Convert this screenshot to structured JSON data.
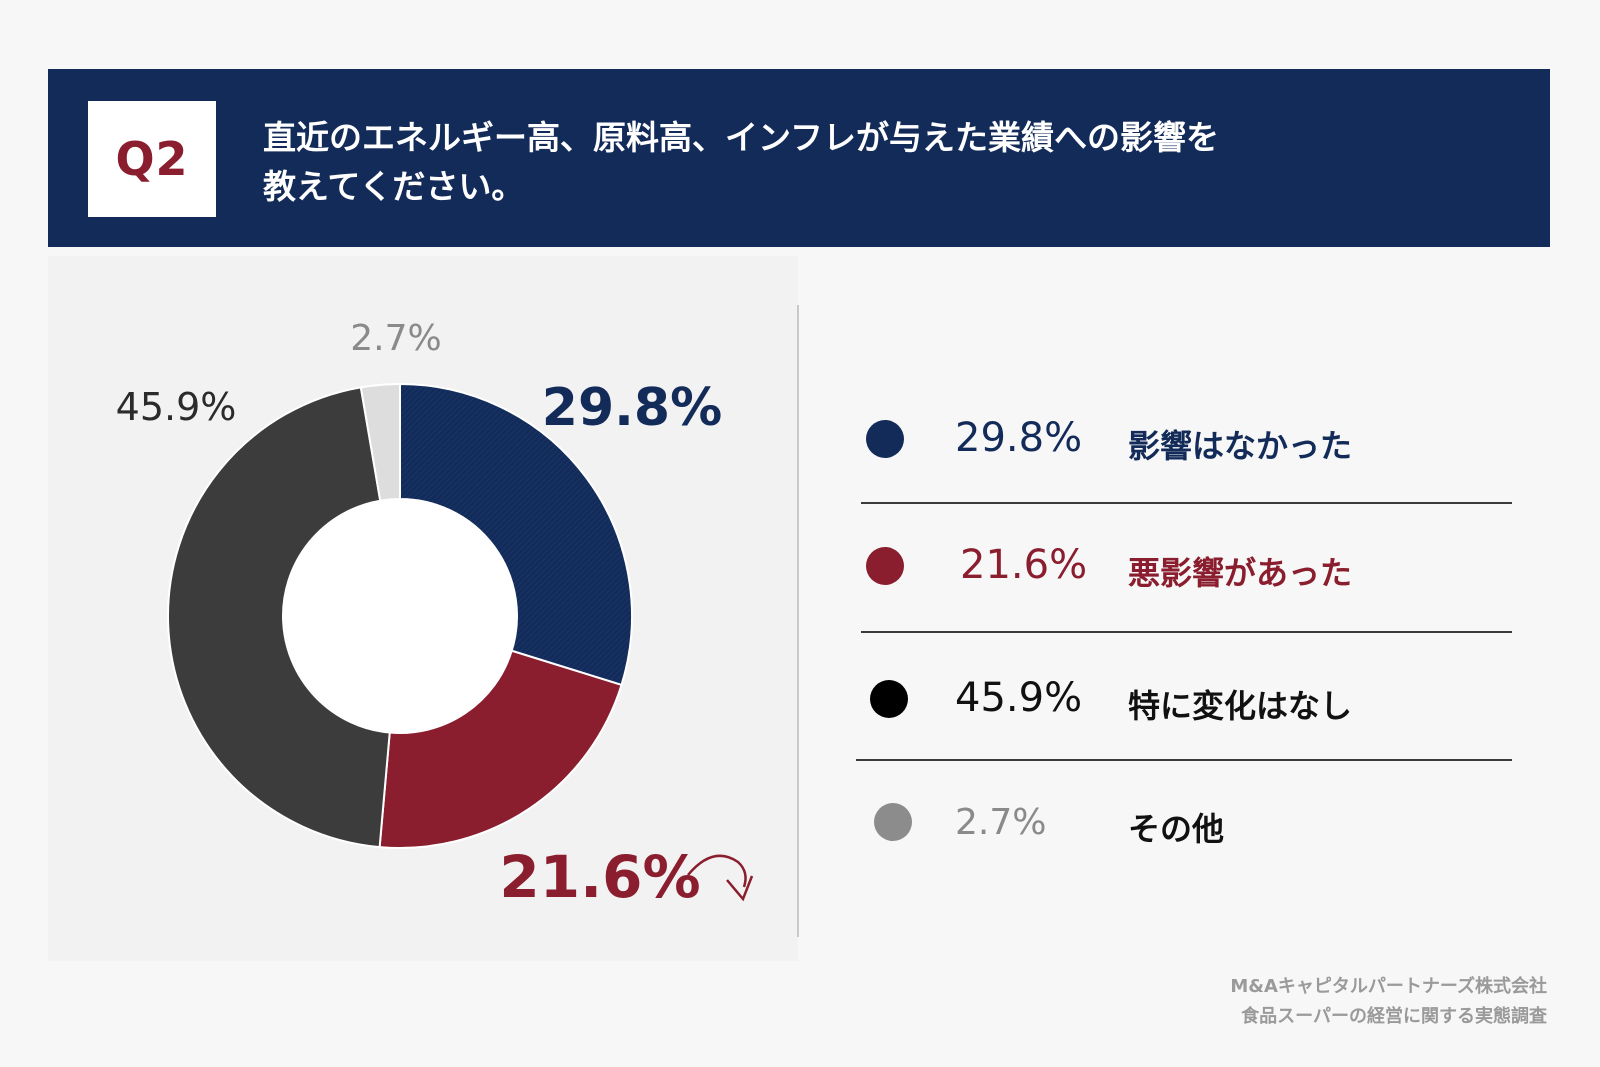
{
  "header": {
    "q_label": "Q2",
    "question_line1": "直近のエネルギー高、原料高、インフレが与えた業績への影響を",
    "question_line2": "教えてください。"
  },
  "chart_data": {
    "type": "pie",
    "donut": true,
    "categories": [
      "影響はなかった",
      "悪影響があった",
      "特に変化はなし",
      "その他"
    ],
    "values": [
      29.8,
      21.6,
      45.9,
      2.7
    ],
    "value_labels": [
      "29.8%",
      "21.6%",
      "45.9%",
      "2.7%"
    ],
    "colors": [
      "#132b59",
      "#8a1d2e",
      "#3c3c3c",
      "#dddddd"
    ],
    "label_colors": [
      "#132b59",
      "#8a1d2e",
      "#2b2b2b",
      "#8a8a8a"
    ],
    "legend_placement": "right"
  },
  "legend": [
    {
      "pct": "29.8%",
      "label": "影響はなかった",
      "color": "#132b59",
      "label_color": "#132b59"
    },
    {
      "pct": "21.6%",
      "label": "悪影響があった",
      "color": "#8a1d2e",
      "label_color": "#8a1d2e"
    },
    {
      "pct": "45.9%",
      "label": "特に変化はなし",
      "color": "#000000",
      "label_color": "#111111"
    },
    {
      "pct": "2.7%",
      "label": "その他",
      "color": "#8c8c8c",
      "label_color": "#111111"
    }
  ],
  "source": {
    "line1": "M&Aキャピタルパートナーズ株式会社",
    "line2": "食品スーパーの経営に関する実態調査"
  }
}
